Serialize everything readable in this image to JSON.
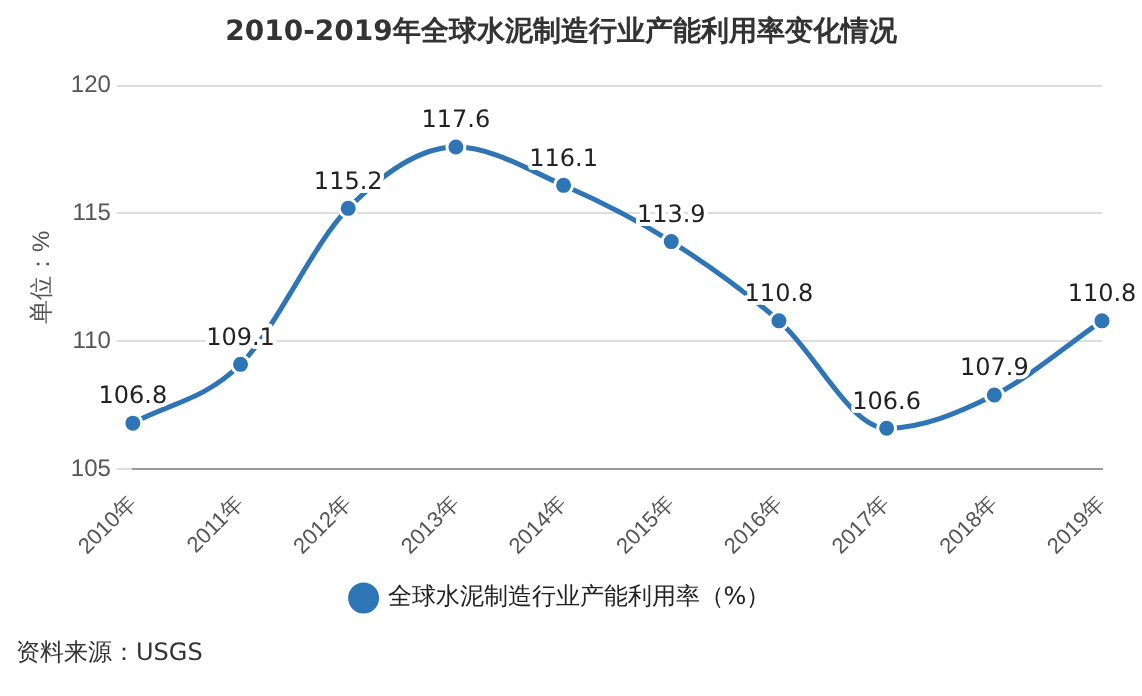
{
  "chart_data": {
    "type": "line",
    "title": "2010-2019年全球水泥制造行业产能利用率变化情况",
    "ylabel": "单位：%",
    "categories": [
      "2010年",
      "2011年",
      "2012年",
      "2013年",
      "2014年",
      "2015年",
      "2016年",
      "2017年",
      "2018年",
      "2019年"
    ],
    "series": [
      {
        "name": "全球水泥制造行业产能利用率（%）",
        "color": "#2e75b6",
        "values": [
          106.8,
          109.1,
          115.2,
          117.6,
          116.1,
          113.9,
          110.8,
          106.6,
          107.9,
          110.8
        ]
      }
    ],
    "ylim": [
      105,
      120
    ],
    "yticks": [
      105,
      110,
      115,
      120
    ],
    "grid": "y",
    "legend": "bottom",
    "marker": "circle",
    "data_labels": true,
    "annotations": [
      "资料来源：USGS"
    ]
  }
}
